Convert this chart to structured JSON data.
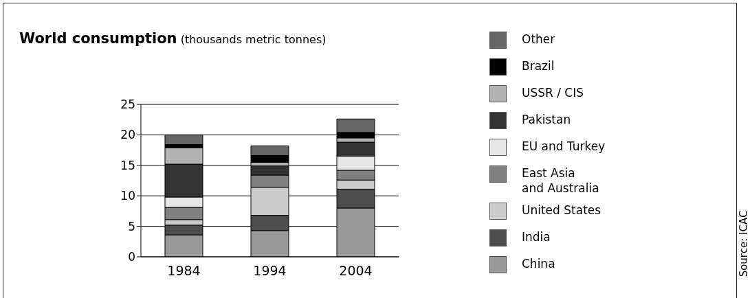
{
  "chart_data": {
    "type": "bar",
    "title": "World consumption",
    "subtitle": "(thousands metric tonnes)",
    "categories": [
      "1984",
      "1994",
      "2004"
    ],
    "stacked": true,
    "series": [
      {
        "name": "China",
        "color": "#999999",
        "values": [
          3.6,
          4.3,
          8.0
        ]
      },
      {
        "name": "India",
        "color": "#4d4d4d",
        "values": [
          1.6,
          2.5,
          3.1
        ]
      },
      {
        "name": "United States",
        "color": "#cccccc",
        "values": [
          0.9,
          4.6,
          1.5
        ]
      },
      {
        "name": "East Asia\nand Australia",
        "color": "#808080",
        "values": [
          2.0,
          2.0,
          1.6
        ]
      },
      {
        "name": "EU and Turkey",
        "color": "#e6e6e6",
        "values": [
          1.7,
          null,
          2.3
        ]
      },
      {
        "name": "Pakistan",
        "color": "#333333",
        "values": [
          5.4,
          1.5,
          2.3
        ]
      },
      {
        "name": "USSR / CIS",
        "color": "#b3b3b3",
        "values": [
          2.7,
          0.6,
          0.7
        ]
      },
      {
        "name": "Brazil",
        "color": "#000000",
        "values": [
          0.5,
          1.1,
          0.9
        ]
      },
      {
        "name": "Other",
        "color": "#666666",
        "values": [
          1.6,
          1.6,
          2.2
        ]
      }
    ],
    "ylim": [
      0,
      25
    ],
    "yticks": [
      0,
      5,
      10,
      15,
      20,
      25
    ],
    "grid": "y",
    "legend": "right",
    "annotations": [
      "Source: ICAC"
    ]
  }
}
